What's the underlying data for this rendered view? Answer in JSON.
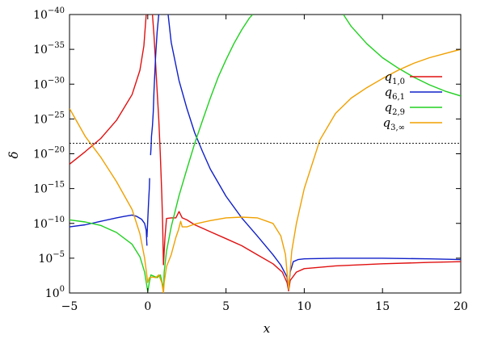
{
  "chart_data": {
    "type": "line",
    "title": "",
    "xlabel": "x",
    "ylabel": "δ",
    "xlim": [
      -5,
      20
    ],
    "ylim_log10": [
      -40,
      0
    ],
    "yscale": "log",
    "grid": false,
    "legend_position": "top-right",
    "x_ticks": [
      -5,
      0,
      5,
      10,
      15,
      20
    ],
    "x_tick_labels": [
      "−5",
      "0",
      "5",
      "10",
      "15",
      "20"
    ],
    "y_ticks_log10": [
      0,
      -5,
      -10,
      -15,
      -20,
      -25,
      -30,
      -35,
      -40
    ],
    "y_tick_labels": [
      {
        "base": "10",
        "exp": "0"
      },
      {
        "base": "10",
        "exp": "−5"
      },
      {
        "base": "10",
        "exp": "−10"
      },
      {
        "base": "10",
        "exp": "−15"
      },
      {
        "base": "10",
        "exp": "−20"
      },
      {
        "base": "10",
        "exp": "−25"
      },
      {
        "base": "10",
        "exp": "−30"
      },
      {
        "base": "10",
        "exp": "−35"
      },
      {
        "base": "10",
        "exp": "−40"
      }
    ],
    "reference_line": {
      "log10_y": -21.5,
      "style": "dotted"
    },
    "series": [
      {
        "name": "q1,0",
        "label_main": "q",
        "label_sub": "1,0",
        "color": "#e01010",
        "segments": [
          [
            [
              -5,
              -18.5
            ],
            [
              -4,
              -20.3
            ],
            [
              -3,
              -22.2
            ],
            [
              -2,
              -24.8
            ],
            [
              -1,
              -28.5
            ],
            [
              -0.5,
              -32
            ],
            [
              -0.25,
              -35.5
            ],
            [
              -0.15,
              -38.5
            ],
            [
              -0.1,
              -40
            ]
          ],
          [
            [
              0.3,
              -40
            ],
            [
              0.4,
              -37
            ],
            [
              0.5,
              -33
            ],
            [
              0.6,
              -29
            ],
            [
              0.7,
              -25
            ],
            [
              0.8,
              -20
            ],
            [
              0.9,
              -14
            ],
            [
              0.95,
              -10
            ],
            [
              1.0,
              -4
            ]
          ],
          [
            [
              1.0,
              -4
            ],
            [
              1.1,
              -8
            ],
            [
              1.2,
              -10.7
            ],
            [
              1.5,
              -10.8
            ],
            [
              1.8,
              -10.8
            ],
            [
              2.0,
              -11.7
            ],
            [
              2.2,
              -10.8
            ],
            [
              2.5,
              -10.5
            ],
            [
              3.0,
              -9.8
            ],
            [
              4.0,
              -8.8
            ],
            [
              5.0,
              -7.8
            ],
            [
              6.0,
              -6.8
            ],
            [
              7.0,
              -5.5
            ],
            [
              8.0,
              -4.2
            ],
            [
              8.6,
              -3.0
            ],
            [
              8.9,
              -1.5
            ],
            [
              9.0,
              -0.3
            ],
            [
              9.1,
              -1.8
            ],
            [
              9.5,
              -3.0
            ],
            [
              10,
              -3.5
            ],
            [
              12,
              -3.9
            ],
            [
              15,
              -4.2
            ],
            [
              18,
              -4.4
            ],
            [
              20,
              -4.5
            ]
          ]
        ]
      },
      {
        "name": "q6,1",
        "label_main": "q",
        "label_sub": "6,1",
        "color": "#1020c8",
        "segments": [
          [
            [
              -5,
              -9.5
            ],
            [
              -4,
              -9.8
            ],
            [
              -3,
              -10.3
            ],
            [
              -2,
              -10.8
            ],
            [
              -1.5,
              -11.0
            ],
            [
              -1.0,
              -11.2
            ],
            [
              -0.7,
              -11.0
            ],
            [
              -0.4,
              -10.6
            ],
            [
              -0.2,
              -10.0
            ],
            [
              -0.1,
              -9.0
            ],
            [
              -0.05,
              -6.8
            ]
          ],
          [
            [
              -0.05,
              -8.0
            ],
            [
              0.0,
              -10.5
            ],
            [
              0.05,
              -13.0
            ],
            [
              0.1,
              -15.0
            ],
            [
              0.12,
              -16.5
            ]
          ],
          [
            [
              0.18,
              -19.8
            ],
            [
              0.2,
              -20.6
            ],
            [
              0.22,
              -21.5
            ],
            [
              0.24,
              -22.5
            ],
            [
              0.3,
              -24.0
            ],
            [
              0.35,
              -26.0
            ],
            [
              0.4,
              -29.0
            ],
            [
              0.5,
              -34.0
            ],
            [
              0.6,
              -37.5
            ],
            [
              0.7,
              -40
            ]
          ],
          [
            [
              1.3,
              -40
            ],
            [
              1.5,
              -36
            ],
            [
              2.0,
              -30.5
            ],
            [
              2.5,
              -26.5
            ],
            [
              3.0,
              -23.0
            ],
            [
              3.5,
              -20.3
            ],
            [
              4.0,
              -17.8
            ],
            [
              5.0,
              -13.9
            ],
            [
              6.0,
              -10.8
            ],
            [
              7.0,
              -8.2
            ],
            [
              8.0,
              -5.5
            ],
            [
              8.5,
              -4.0
            ],
            [
              8.9,
              -2.3
            ],
            [
              9.0,
              -0.5
            ],
            [
              9.1,
              -3.0
            ],
            [
              9.3,
              -4.5
            ],
            [
              9.6,
              -4.8
            ],
            [
              10,
              -4.9
            ],
            [
              12,
              -5.0
            ],
            [
              15,
              -5.0
            ],
            [
              18,
              -4.9
            ],
            [
              20,
              -4.8
            ]
          ]
        ]
      },
      {
        "name": "q2,9",
        "label_main": "q",
        "label_sub": "2,9",
        "color": "#20d020",
        "segments": [
          [
            [
              -5,
              -10.5
            ],
            [
              -4,
              -10.2
            ],
            [
              -3,
              -9.7
            ],
            [
              -2,
              -8.7
            ],
            [
              -1,
              -7.0
            ],
            [
              -0.5,
              -5.2
            ],
            [
              -0.2,
              -3.0
            ],
            [
              0,
              -0.2
            ],
            [
              0.1,
              -1.5
            ],
            [
              0.2,
              -2.6
            ],
            [
              0.4,
              -2.4
            ],
            [
              0.6,
              -2.2
            ],
            [
              0.8,
              -2.6
            ],
            [
              0.95,
              -1.2
            ],
            [
              1.0,
              -0.2
            ],
            [
              1.05,
              -3.0
            ],
            [
              1.2,
              -6.0
            ],
            [
              1.5,
              -9.5
            ],
            [
              2.0,
              -14.0
            ],
            [
              2.5,
              -17.8
            ],
            [
              3.0,
              -21.5
            ],
            [
              3.5,
              -24.8
            ],
            [
              4.0,
              -28.0
            ],
            [
              4.5,
              -31.0
            ],
            [
              5.0,
              -33.5
            ],
            [
              5.5,
              -35.8
            ],
            [
              6.0,
              -37.8
            ],
            [
              6.5,
              -39.5
            ],
            [
              6.7,
              -40
            ]
          ],
          [
            [
              12.5,
              -40
            ],
            [
              13,
              -38.3
            ],
            [
              14,
              -35.8
            ],
            [
              15,
              -33.8
            ],
            [
              16,
              -32.3
            ],
            [
              17,
              -31.0
            ],
            [
              18,
              -29.9
            ],
            [
              19,
              -29.0
            ],
            [
              20,
              -28.3
            ]
          ]
        ]
      },
      {
        "name": "q3,∞",
        "label_main": "q",
        "label_sub": "3,∞",
        "color": "#f0a000",
        "segments": [
          [
            [
              -5,
              -26.5
            ],
            [
              -4,
              -22.5
            ],
            [
              -3,
              -19.5
            ],
            [
              -2,
              -16.0
            ],
            [
              -1,
              -12.0
            ],
            [
              -0.5,
              -8.5
            ],
            [
              -0.2,
              -5.0
            ],
            [
              0.0,
              -1.5
            ],
            [
              0.1,
              -2.2
            ],
            [
              0.3,
              -2.3
            ],
            [
              0.5,
              -2.2
            ],
            [
              0.7,
              -2.6
            ],
            [
              0.9,
              -1.5
            ],
            [
              1.0,
              0.0
            ],
            [
              1.05,
              -1.5
            ],
            [
              1.2,
              -3.8
            ],
            [
              1.5,
              -5.5
            ],
            [
              1.8,
              -8.0
            ],
            [
              1.95,
              -9.0
            ],
            [
              2.1,
              -10.3
            ],
            [
              2.2,
              -9.5
            ],
            [
              2.5,
              -9.5
            ],
            [
              3.0,
              -9.9
            ],
            [
              4.0,
              -10.4
            ],
            [
              5.0,
              -10.8
            ],
            [
              6.0,
              -10.9
            ],
            [
              7.0,
              -10.8
            ],
            [
              8.0,
              -10.0
            ],
            [
              8.5,
              -8.2
            ],
            [
              8.8,
              -5.5
            ],
            [
              9.0,
              -0.5
            ],
            [
              9.2,
              -6.0
            ],
            [
              9.5,
              -10.0
            ],
            [
              10.0,
              -15.0
            ],
            [
              11.0,
              -22.0
            ],
            [
              12.0,
              -25.8
            ],
            [
              13.0,
              -28.0
            ],
            [
              14.0,
              -29.5
            ],
            [
              15.0,
              -30.8
            ],
            [
              16.0,
              -32.0
            ],
            [
              17.0,
              -33.0
            ],
            [
              18.0,
              -33.8
            ],
            [
              19.0,
              -34.4
            ],
            [
              20.0,
              -35.0
            ]
          ]
        ]
      }
    ]
  }
}
